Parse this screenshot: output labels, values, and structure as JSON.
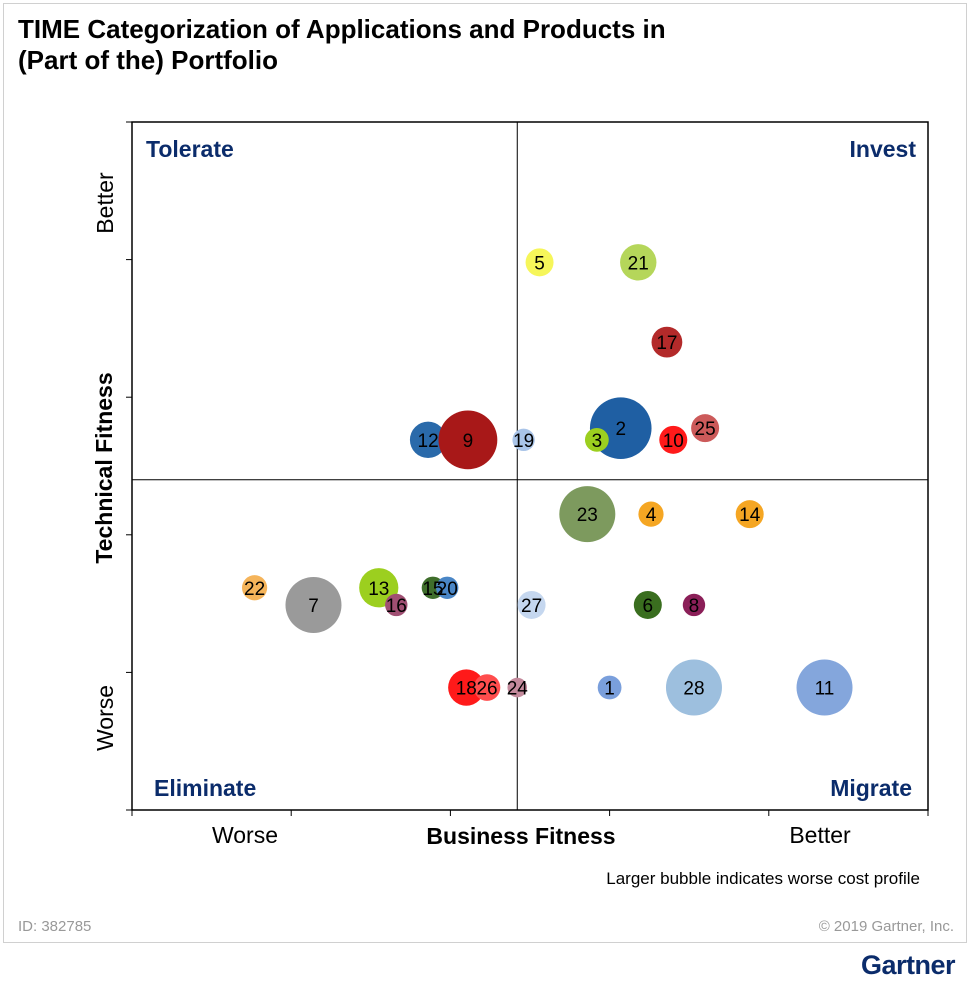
{
  "title": [
    "TIME Categorization of Applications and Products in",
    "(Part of the) Portfolio"
  ],
  "id_text": "ID: 382785",
  "copyright": "© 2019 Gartner, Inc.",
  "brand": "Gartner",
  "colors": {
    "quadrant_label": "#0b2c6b",
    "axis": "#000000"
  },
  "chart_data": {
    "type": "scatter",
    "subtype": "bubble",
    "xlabel": "Business Fitness",
    "ylabel": "Technical Fitness",
    "x_tick_labels": [
      "Worse",
      "Better"
    ],
    "y_tick_labels": [
      "Worse",
      "Better"
    ],
    "xlim": [
      0,
      10
    ],
    "ylim": [
      0,
      10
    ],
    "divider": {
      "x": 4.84,
      "y": 4.8
    },
    "quadrants": [
      {
        "name": "Tolerate",
        "position": "top-left"
      },
      {
        "name": "Invest",
        "position": "top-right"
      },
      {
        "name": "Eliminate",
        "position": "bottom-left"
      },
      {
        "name": "Migrate",
        "position": "bottom-right"
      }
    ],
    "note": "Larger bubble indicates worse cost profile",
    "points": [
      {
        "label": "5",
        "x": 5.12,
        "y": 7.96,
        "size": 1.0,
        "color": "#f6f65a"
      },
      {
        "label": "21",
        "x": 6.36,
        "y": 7.96,
        "size": 1.3,
        "color": "#b5d65a"
      },
      {
        "label": "17",
        "x": 6.72,
        "y": 6.8,
        "size": 1.1,
        "color": "#b32a2a"
      },
      {
        "label": "2",
        "x": 6.14,
        "y": 5.55,
        "size": 2.2,
        "color": "#1f5fa3"
      },
      {
        "label": "25",
        "x": 7.2,
        "y": 5.55,
        "size": 1.0,
        "color": "#cc5a5a"
      },
      {
        "label": "3",
        "x": 5.84,
        "y": 5.38,
        "size": 0.85,
        "color": "#9ccf1f"
      },
      {
        "label": "10",
        "x": 6.8,
        "y": 5.38,
        "size": 1.0,
        "color": "#ff1a1a"
      },
      {
        "label": "19",
        "x": 4.92,
        "y": 5.38,
        "size": 0.8,
        "color": "#a9c4e8"
      },
      {
        "label": "12",
        "x": 3.72,
        "y": 5.38,
        "size": 1.3,
        "color": "#2a6aaa"
      },
      {
        "label": "9",
        "x": 4.22,
        "y": 5.38,
        "size": 2.1,
        "color": "#a81818"
      },
      {
        "label": "23",
        "x": 5.72,
        "y": 4.3,
        "size": 2.0,
        "color": "#7d9a5e"
      },
      {
        "label": "4",
        "x": 6.52,
        "y": 4.3,
        "size": 0.9,
        "color": "#f5a623"
      },
      {
        "label": "14",
        "x": 7.76,
        "y": 4.3,
        "size": 1.0,
        "color": "#f5a623"
      },
      {
        "label": "22",
        "x": 1.54,
        "y": 3.23,
        "size": 0.9,
        "color": "#f5b45a"
      },
      {
        "label": "7",
        "x": 2.28,
        "y": 2.98,
        "size": 2.0,
        "color": "#9a9a9a"
      },
      {
        "label": "13",
        "x": 3.1,
        "y": 3.23,
        "size": 1.4,
        "color": "#9ccf1f"
      },
      {
        "label": "16",
        "x": 3.32,
        "y": 2.98,
        "size": 0.8,
        "color": "#a04f73"
      },
      {
        "label": "15",
        "x": 3.78,
        "y": 3.23,
        "size": 0.8,
        "color": "#3f6e2b"
      },
      {
        "label": "20",
        "x": 3.96,
        "y": 3.23,
        "size": 0.8,
        "color": "#4a86c6"
      },
      {
        "label": "27",
        "x": 5.02,
        "y": 2.98,
        "size": 1.0,
        "color": "#c5d7ef"
      },
      {
        "label": "6",
        "x": 6.48,
        "y": 2.98,
        "size": 1.0,
        "color": "#3a6e1f"
      },
      {
        "label": "8",
        "x": 7.06,
        "y": 2.98,
        "size": 0.8,
        "color": "#8b1f58"
      },
      {
        "label": "18",
        "x": 4.2,
        "y": 1.78,
        "size": 1.3,
        "color": "#ff1a1a"
      },
      {
        "label": "26",
        "x": 4.46,
        "y": 1.78,
        "size": 0.95,
        "color": "#ff4d4d"
      },
      {
        "label": "24",
        "x": 4.84,
        "y": 1.78,
        "size": 0.7,
        "color": "#c48a9c"
      },
      {
        "label": "1",
        "x": 6.0,
        "y": 1.78,
        "size": 0.85,
        "color": "#7a9fdc"
      },
      {
        "label": "28",
        "x": 7.06,
        "y": 1.78,
        "size": 2.0,
        "color": "#9dbfde"
      },
      {
        "label": "11",
        "x": 8.7,
        "y": 1.78,
        "size": 2.0,
        "color": "#84a6dc"
      }
    ]
  }
}
